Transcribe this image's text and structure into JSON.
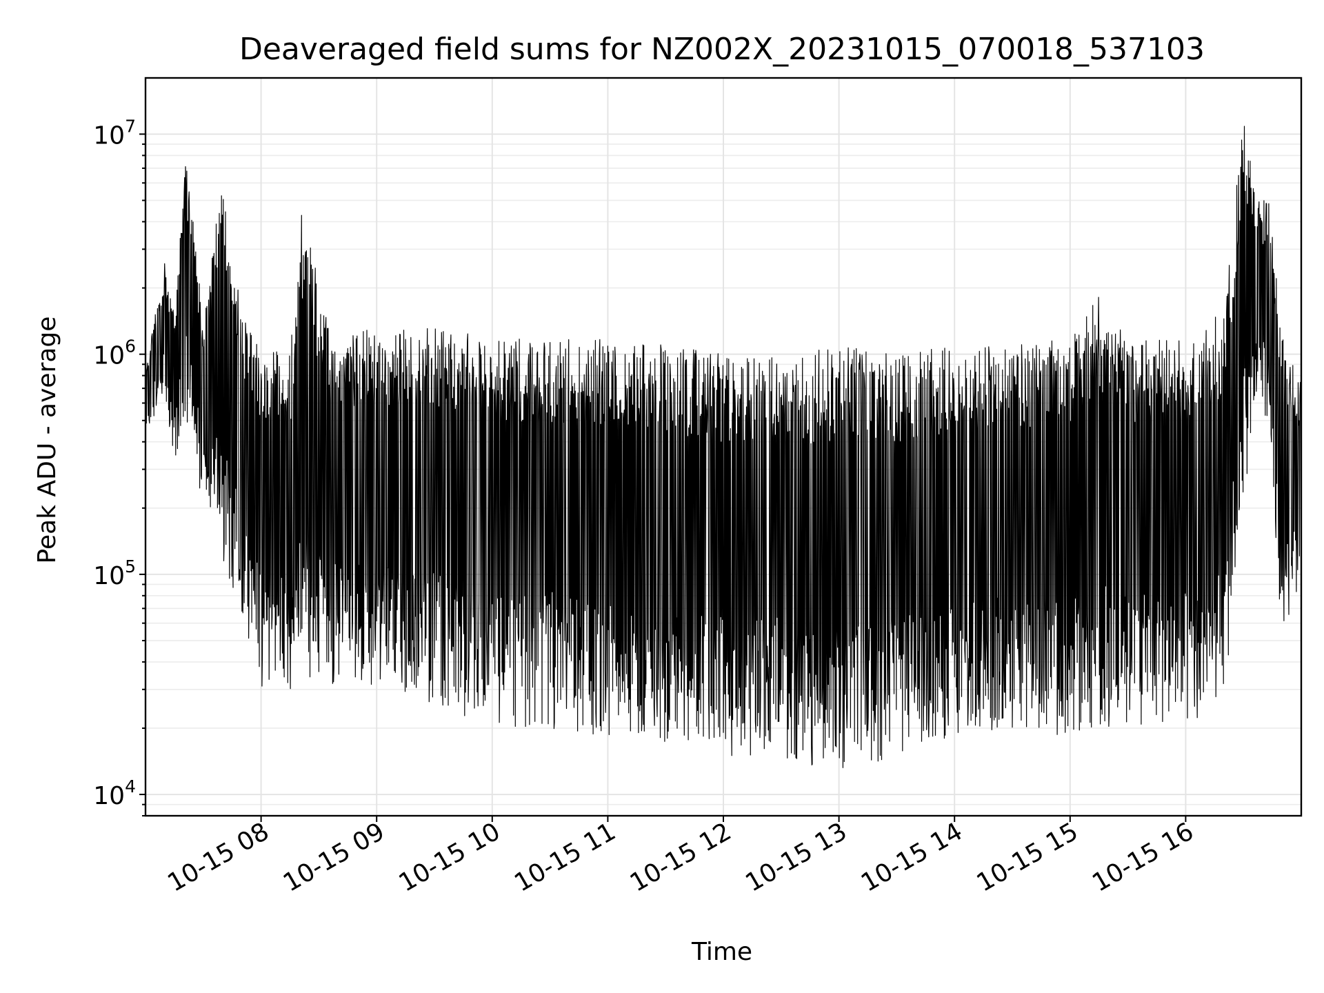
{
  "chart_data": {
    "type": "line",
    "title": "Deaveraged field sums for NZ002X_20231015_070018_537103",
    "xlabel": "Time",
    "ylabel": "Peak ADU - average",
    "yscale": "log",
    "xlim": [
      "2023-10-15 07:00",
      "2023-10-15 17:00"
    ],
    "ylim": [
      8000,
      18000000
    ],
    "grid": true,
    "line_color": "#000000",
    "x_ticks": [
      {
        "value": "2023-10-15 08:00",
        "label": "10-15 08"
      },
      {
        "value": "2023-10-15 09:00",
        "label": "10-15 09"
      },
      {
        "value": "2023-10-15 10:00",
        "label": "10-15 10"
      },
      {
        "value": "2023-10-15 11:00",
        "label": "10-15 11"
      },
      {
        "value": "2023-10-15 12:00",
        "label": "10-15 12"
      },
      {
        "value": "2023-10-15 13:00",
        "label": "10-15 13"
      },
      {
        "value": "2023-10-15 14:00",
        "label": "10-15 14"
      },
      {
        "value": "2023-10-15 15:00",
        "label": "10-15 15"
      },
      {
        "value": "2023-10-15 16:00",
        "label": "10-15 16"
      }
    ],
    "y_ticks": [
      {
        "value": 10000,
        "base": "10",
        "exp": "4"
      },
      {
        "value": 100000,
        "base": "10",
        "exp": "5"
      },
      {
        "value": 1000000,
        "base": "10",
        "exp": "6"
      },
      {
        "value": 10000000,
        "base": "10",
        "exp": "7"
      }
    ],
    "series": [
      {
        "x": [
          "2023-10-15 07:00",
          "2023-10-15 07:10",
          "2023-10-15 07:15",
          "2023-10-15 07:21",
          "2023-10-15 07:30",
          "2023-10-15 07:40",
          "2023-10-15 07:52",
          "2023-10-15 08:00",
          "2023-10-15 08:15",
          "2023-10-15 08:22",
          "2023-10-15 08:35",
          "2023-10-15 09:00",
          "2023-10-15 09:30",
          "2023-10-15 10:00",
          "2023-10-15 10:30",
          "2023-10-15 11:00",
          "2023-10-15 11:30",
          "2023-10-15 12:00",
          "2023-10-15 12:30",
          "2023-10-15 12:50",
          "2023-10-15 13:00",
          "2023-10-15 13:30",
          "2023-10-15 14:00",
          "2023-10-15 14:30",
          "2023-10-15 15:00",
          "2023-10-15 15:15",
          "2023-10-15 15:30",
          "2023-10-15 16:00",
          "2023-10-15 16:20",
          "2023-10-15 16:30",
          "2023-10-15 16:37",
          "2023-10-15 16:43",
          "2023-10-15 16:50",
          "2023-10-15 17:00"
        ],
        "envelope_high": [
          900000,
          2600000,
          1500000,
          8500000,
          1400000,
          6500000,
          1400000,
          1100000,
          1000000,
          5700000,
          1300000,
          1300000,
          1400000,
          1200000,
          1200000,
          1200000,
          1100000,
          1000000,
          1000000,
          1050000,
          1100000,
          1000000,
          1100000,
          1100000,
          1200000,
          1900000,
          1150000,
          1200000,
          1600000,
          12000000,
          5000000,
          5200000,
          1200000,
          750000
        ],
        "envelope_low": [
          400000,
          700000,
          300000,
          500000,
          200000,
          120000,
          50000,
          30000,
          30000,
          35000,
          30000,
          30000,
          25000,
          20000,
          20000,
          18000,
          17000,
          15000,
          15000,
          11000,
          12000,
          15000,
          17000,
          20000,
          18000,
          20000,
          19000,
          20000,
          25000,
          200000,
          600000,
          500000,
          50000,
          80000
        ]
      }
    ]
  }
}
